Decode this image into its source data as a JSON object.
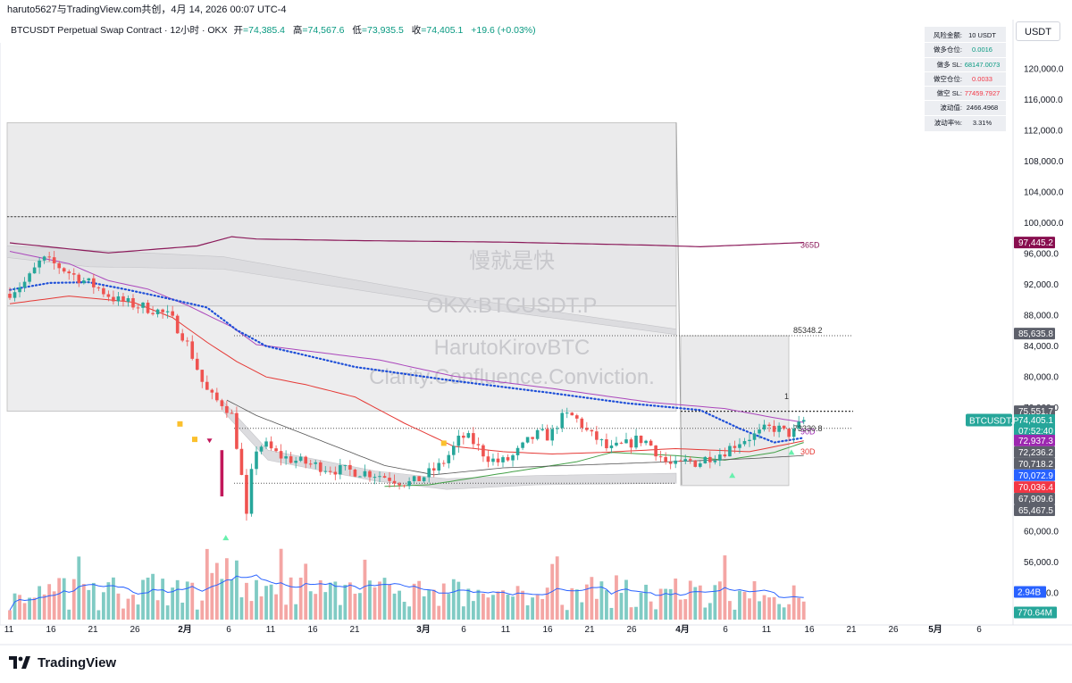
{
  "topbar": {
    "text": "haruto5627与TradingView.com共创，4月 14, 2026 00:07 UTC-4"
  },
  "legend": {
    "symbol": "BTCUSDT Perpetual Swap Contract · 12小时 · OKX",
    "open_label": "开",
    "open": "=74,385.4",
    "high_label": "高",
    "high": "=74,567.6",
    "low_label": "低",
    "low": "=73,935.5",
    "close_label": "收",
    "close": "=74,405.1",
    "change": "+19.6 (+0.03%)"
  },
  "currency": "USDT",
  "risk_panel": [
    {
      "k": "风险金额:",
      "v": "10 USDT",
      "c": ""
    },
    {
      "k": "做多仓位:",
      "v": "0.0016",
      "c": "green"
    },
    {
      "k": "做多 SL:",
      "v": "68147.0073",
      "c": "green"
    },
    {
      "k": "做空仓位:",
      "v": "0.0033",
      "c": "red"
    },
    {
      "k": "做空 SL:",
      "v": "77459.7927",
      "c": "red"
    },
    {
      "k": "波动值:",
      "v": "2466.4968",
      "c": ""
    },
    {
      "k": "波动率%:",
      "v": "3.31%",
      "c": ""
    }
  ],
  "watermarks": [
    "慢就是快",
    "OKX:BTCUSDT.P",
    "HarutoKirovBTC",
    "Clarity.Confluence.Conviction."
  ],
  "ma_labels": [
    {
      "text": "365D",
      "color": "#8b1a5a"
    },
    {
      "text": "90D",
      "color": "#9c27b0"
    },
    {
      "text": "30D",
      "color": "#e53935"
    }
  ],
  "level_labels": [
    {
      "text": "85348.2",
      "price": 85348.2
    },
    {
      "text": "73330.8",
      "price": 73330.8
    },
    {
      "text": "1",
      "price": 75551.7
    }
  ],
  "colors": {
    "up": "#26a69a",
    "down": "#ef5350",
    "up_vol": "#80cbc4",
    "down_vol": "#f4a6a4",
    "ma365": "#8b1a5a",
    "ma90": "#ab47bc",
    "ma30": "#e53935",
    "dotted": "#1e4fd8",
    "vol_ma": "#2962ff"
  },
  "badges": [
    {
      "text": "97,445.2",
      "price": 97445.2,
      "bg": "#880e4f",
      "fg": "#ffffff"
    },
    {
      "text": "85,635.8",
      "price": 85635.8,
      "bg": "#5d606b",
      "fg": "#ffffff"
    },
    {
      "text": "75,551.7",
      "price": 75551.7,
      "bg": "#5d606b",
      "fg": "#ffffff"
    },
    {
      "text": "74,405.1",
      "price": 74405.1,
      "bg": "#26a69a",
      "fg": "#ffffff"
    },
    {
      "text": "07:52:40",
      "price": 73050,
      "bg": "#26a69a",
      "fg": "#ffffff"
    },
    {
      "text": "72,937.3",
      "price": 71750,
      "bg": "#9c27b0",
      "fg": "#ffffff"
    },
    {
      "text": "72,236.2",
      "price": 70250,
      "bg": "#5d606b",
      "fg": "#ffffff"
    },
    {
      "text": "70,718.2",
      "price": 68750,
      "bg": "#5d606b",
      "fg": "#ffffff"
    },
    {
      "text": "70,072.9",
      "price": 67250,
      "bg": "#2962ff",
      "fg": "#ffffff"
    },
    {
      "text": "70,036.4",
      "price": 65700,
      "bg": "#f23645",
      "fg": "#ffffff"
    },
    {
      "text": "67,909.6",
      "price": 64200,
      "bg": "#5d606b",
      "fg": "#ffffff"
    },
    {
      "text": "65,467.5",
      "price": 62700,
      "bg": "#5d606b",
      "fg": "#ffffff"
    }
  ],
  "symbol_badge": "BTCUSDT.P",
  "volume_badges": [
    {
      "text": "2.94B",
      "bg": "#2962ff"
    },
    {
      "text": "770.64M",
      "bg": "#26a69a"
    }
  ],
  "brand": "TradingView",
  "chart_data": {
    "type": "candlestick",
    "y_axis": {
      "ticks": [
        120000,
        116000,
        112000,
        108000,
        104000,
        100000,
        96000,
        92000,
        88000,
        84000,
        80000,
        76000,
        60000,
        56000,
        52000
      ],
      "tick_labels": [
        "120,000.0",
        "116,000.0",
        "112,000.0",
        "108,000.0",
        "104,000.0",
        "100,000.0",
        "96,000.0",
        "92,000.0",
        "88,000.0",
        "84,000.0",
        "80,000.0",
        "76,000.0",
        "60,000.0",
        "56,000.0",
        "52,000.0"
      ],
      "range": [
        48500,
        124000
      ]
    },
    "x_axis": {
      "labels": [
        "11",
        "16",
        "21",
        "26",
        "2月",
        "6",
        "11",
        "16",
        "21",
        "3月",
        "6",
        "11",
        "16",
        "21",
        "26",
        "4月",
        "6",
        "11",
        "16",
        "21",
        "26",
        "5月",
        "6"
      ]
    },
    "price_path": [
      [
        0,
        90800
      ],
      [
        4,
        92500
      ],
      [
        7,
        95300
      ],
      [
        10,
        94500
      ],
      [
        14,
        93000
      ],
      [
        18,
        91700
      ],
      [
        22,
        90000
      ],
      [
        26,
        89300
      ],
      [
        30,
        88700
      ],
      [
        33,
        87800
      ],
      [
        36,
        85000
      ],
      [
        38,
        82000
      ],
      [
        40,
        78500
      ],
      [
        42,
        77000
      ],
      [
        44,
        76500
      ],
      [
        45.5,
        75000
      ],
      [
        46,
        73500
      ],
      [
        47,
        69000
      ],
      [
        48,
        65000
      ],
      [
        48.6,
        61000
      ],
      [
        49.2,
        65500
      ],
      [
        50,
        70500
      ],
      [
        52,
        71300
      ],
      [
        55,
        69800
      ],
      [
        58,
        69200
      ],
      [
        62,
        68600
      ],
      [
        66,
        68000
      ],
      [
        70,
        67800
      ],
      [
        74,
        67500
      ],
      [
        77,
        67000
      ],
      [
        80,
        66400
      ],
      [
        82,
        66200
      ],
      [
        85,
        67300
      ],
      [
        88,
        68600
      ],
      [
        90,
        70300
      ],
      [
        92,
        72300
      ],
      [
        94,
        71900
      ],
      [
        96,
        70400
      ],
      [
        98,
        69300
      ],
      [
        100,
        68900
      ],
      [
        102,
        69400
      ],
      [
        104,
        70600
      ],
      [
        106,
        71900
      ],
      [
        108,
        72700
      ],
      [
        110,
        72200
      ],
      [
        112,
        74500
      ],
      [
        114,
        75100
      ],
      [
        116,
        74200
      ],
      [
        118,
        72500
      ],
      [
        120,
        71800
      ],
      [
        122,
        70400
      ],
      [
        124,
        71000
      ],
      [
        126,
        71300
      ],
      [
        128,
        72000
      ],
      [
        130,
        71500
      ],
      [
        132,
        70000
      ],
      [
        134,
        68600
      ],
      [
        136,
        68400
      ],
      [
        138,
        69200
      ],
      [
        140,
        68800
      ],
      [
        142,
        69600
      ],
      [
        144,
        69900
      ],
      [
        146,
        70600
      ],
      [
        148,
        71500
      ],
      [
        150,
        72100
      ],
      [
        152,
        72500
      ],
      [
        154,
        73300
      ],
      [
        156,
        73400
      ],
      [
        158,
        72600
      ],
      [
        160,
        72900
      ],
      [
        161,
        74405
      ]
    ],
    "ma_365": [
      [
        0,
        97400
      ],
      [
        20,
        96100
      ],
      [
        38,
        97000
      ],
      [
        45,
        98200
      ],
      [
        50,
        97900
      ],
      [
        70,
        97700
      ],
      [
        100,
        97500
      ],
      [
        130,
        97100
      ],
      [
        140,
        96900
      ],
      [
        161,
        97445
      ]
    ],
    "ma_90": [
      [
        0,
        96300
      ],
      [
        12,
        94700
      ],
      [
        20,
        92500
      ],
      [
        28,
        91400
      ],
      [
        36,
        89300
      ],
      [
        45,
        86500
      ],
      [
        50,
        84200
      ],
      [
        60,
        83400
      ],
      [
        75,
        82200
      ],
      [
        90,
        80100
      ],
      [
        110,
        78500
      ],
      [
        130,
        76700
      ],
      [
        145,
        75900
      ],
      [
        155,
        74700
      ],
      [
        161,
        74100
      ]
    ],
    "ma_30": [
      [
        0,
        89500
      ],
      [
        12,
        90500
      ],
      [
        25,
        89700
      ],
      [
        33,
        87700
      ],
      [
        40,
        84500
      ],
      [
        46,
        82000
      ],
      [
        52,
        80000
      ],
      [
        60,
        79000
      ],
      [
        70,
        77400
      ],
      [
        80,
        74000
      ],
      [
        90,
        71000
      ],
      [
        100,
        70300
      ],
      [
        110,
        70000
      ],
      [
        120,
        70200
      ],
      [
        135,
        70700
      ],
      [
        150,
        70300
      ],
      [
        161,
        71700
      ]
    ],
    "dotted_ma": [
      [
        0,
        91300
      ],
      [
        8,
        92200
      ],
      [
        16,
        92300
      ],
      [
        24,
        91300
      ],
      [
        32,
        90200
      ],
      [
        40,
        89000
      ],
      [
        46,
        86100
      ],
      [
        52,
        84000
      ],
      [
        70,
        81300
      ],
      [
        90,
        79500
      ],
      [
        110,
        77900
      ],
      [
        125,
        76600
      ],
      [
        140,
        75700
      ],
      [
        148,
        73300
      ],
      [
        155,
        71500
      ],
      [
        161,
        72100
      ]
    ],
    "levels": [
      100800,
      85348.2,
      75551.7,
      73330.8,
      66200
    ],
    "volume_range": [
      0,
      4000000000
    ]
  }
}
